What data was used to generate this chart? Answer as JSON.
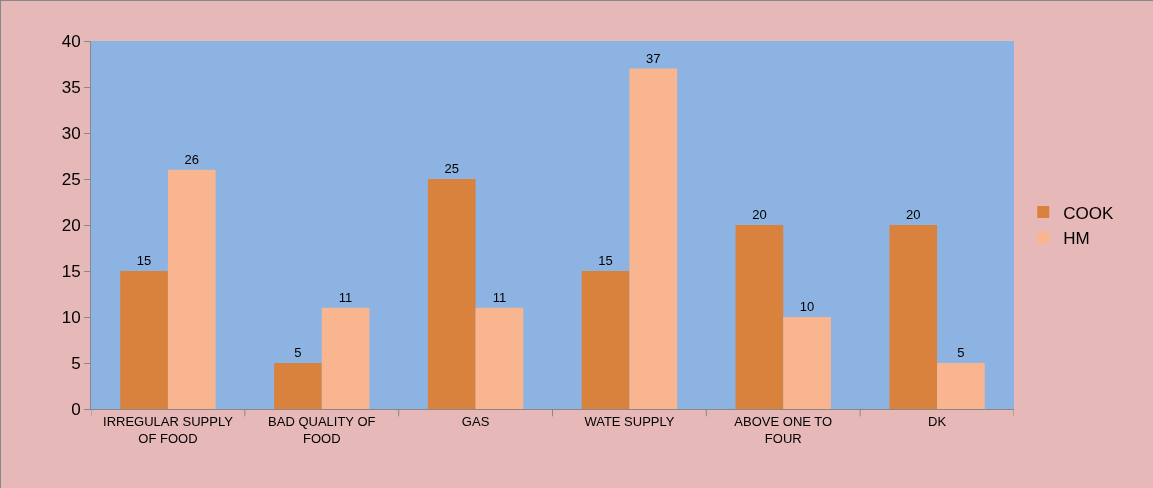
{
  "chart_data": {
    "type": "bar",
    "categories": [
      "IRREGULAR SUPPLY OF FOOD",
      "BAD QUALITY OF FOOD",
      "GAS",
      "WATE SUPPLY",
      "ABOVE ONE TO FOUR",
      "DK"
    ],
    "series": [
      {
        "name": "COOK",
        "color": "#d9823d",
        "values": [
          15,
          5,
          25,
          15,
          20,
          20
        ]
      },
      {
        "name": "HM",
        "color": "#f8b590",
        "values": [
          26,
          11,
          11,
          37,
          10,
          5
        ]
      }
    ],
    "ylim": [
      0,
      40
    ],
    "yticks": [
      0,
      5,
      10,
      15,
      20,
      25,
      30,
      35,
      40
    ],
    "grid": false,
    "legend": "right",
    "data_labels": true
  }
}
